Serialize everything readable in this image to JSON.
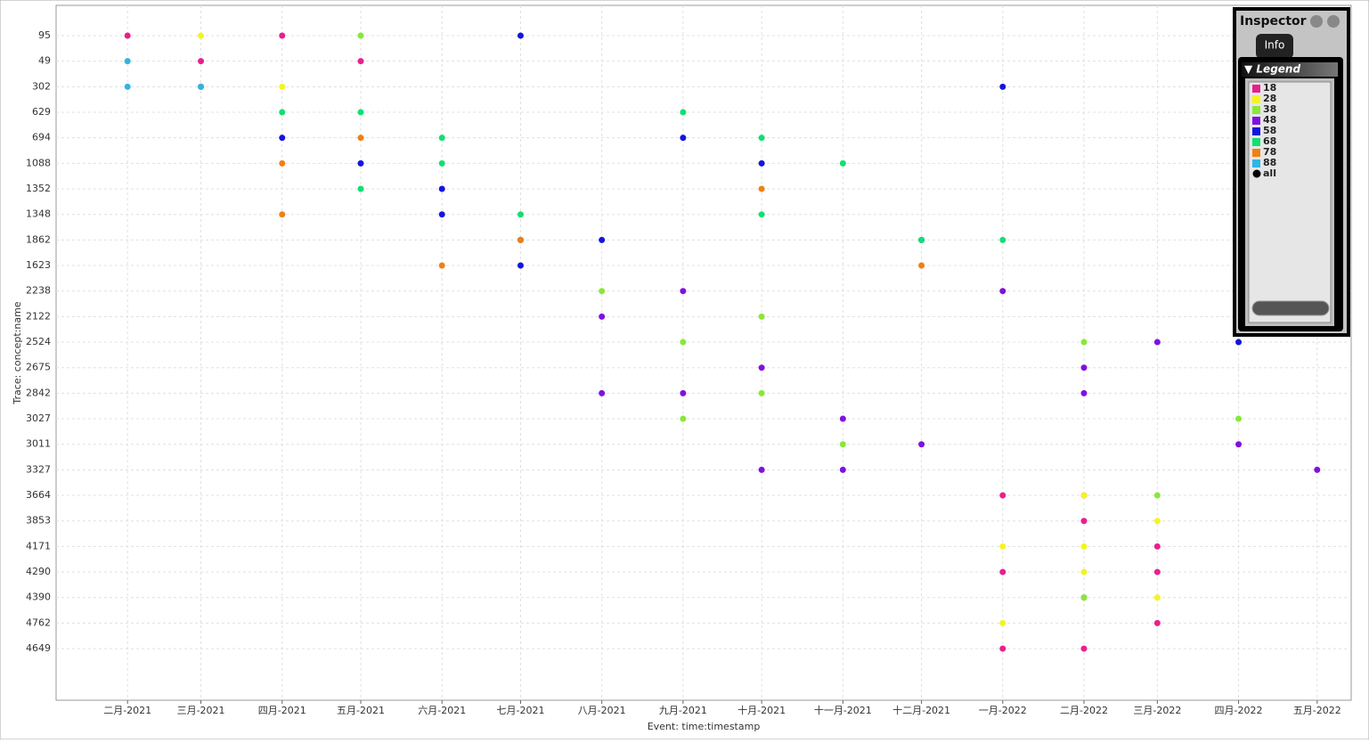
{
  "chart_data": {
    "type": "scatter",
    "y_label": "Trace: concept:name",
    "x_label": "Event: time:timestamp",
    "categories": [
      "95",
      "49",
      "302",
      "629",
      "694",
      "1088",
      "1352",
      "1348",
      "1862",
      "1623",
      "2238",
      "2122",
      "2524",
      "2675",
      "2842",
      "3027",
      "3011",
      "3327",
      "3664",
      "3853",
      "4171",
      "4290",
      "4390",
      "4762",
      "4649"
    ],
    "xlim": [
      "2021-01",
      "2022-06"
    ],
    "xticks": [
      {
        "value": "2021-02",
        "label": "二月-2021"
      },
      {
        "value": "2021-03",
        "label": "三月-2021"
      },
      {
        "value": "2021-04",
        "label": "四月-2021"
      },
      {
        "value": "2021-05",
        "label": "五月-2021"
      },
      {
        "value": "2021-06",
        "label": "六月-2021"
      },
      {
        "value": "2021-07",
        "label": "七月-2021"
      },
      {
        "value": "2021-08",
        "label": "八月-2021"
      },
      {
        "value": "2021-09",
        "label": "九月-2021"
      },
      {
        "value": "2021-10",
        "label": "十月-2021"
      },
      {
        "value": "2021-11",
        "label": "十一月-2021"
      },
      {
        "value": "2021-12",
        "label": "十二月-2021"
      },
      {
        "value": "2022-01",
        "label": "一月-2022"
      },
      {
        "value": "2022-02",
        "label": "二月-2022"
      },
      {
        "value": "2022-03",
        "label": "三月-2022"
      },
      {
        "value": "2022-04",
        "label": "四月-2022"
      },
      {
        "value": "2022-05",
        "label": "五月-2022"
      }
    ],
    "grid": true,
    "series": [
      {
        "name": "18",
        "color": "#e8208c",
        "x": [
          "2021-02",
          "2021-03",
          "2021-04",
          "2021-05",
          "2021-03",
          "2022-01",
          "2022-02",
          "2022-03",
          "2022-01",
          "2022-02",
          "2022-03",
          "2022-01",
          "2022-02",
          "2022-03",
          "2022-02"
        ],
        "values": [
          "95",
          "49",
          "95",
          "49",
          "302",
          "3664",
          "3853",
          "4171",
          "4290",
          "4390",
          "4762",
          "4649",
          "3664",
          "4290",
          "4649"
        ]
      },
      {
        "name": "28",
        "color": "#f4f420",
        "x": [
          "2021-02",
          "2021-04",
          "2021-03",
          "2022-02",
          "2022-03",
          "2022-01",
          "2022-02",
          "2022-03",
          "2022-01",
          "2022-02"
        ],
        "values": [
          "49",
          "302",
          "95",
          "3664",
          "3853",
          "4171",
          "4290",
          "4390",
          "4762",
          "4171"
        ]
      },
      {
        "name": "38",
        "color": "#88e838",
        "x": [
          "2021-03",
          "2021-05",
          "2021-08",
          "2021-09",
          "2021-10",
          "2021-09",
          "2021-11",
          "2021-10",
          "2022-02",
          "2022-03",
          "2022-04",
          "2022-02"
        ],
        "values": [
          "302",
          "95",
          "2238",
          "2524",
          "2842",
          "3027",
          "3011",
          "2122",
          "2524",
          "3664",
          "3027",
          "4390"
        ]
      },
      {
        "name": "48",
        "color": "#8010e0",
        "x": [
          "2021-08",
          "2021-09",
          "2021-10",
          "2021-08",
          "2021-09",
          "2021-10",
          "2021-11",
          "2021-12",
          "2021-11",
          "2022-01",
          "2022-02",
          "2022-03",
          "2022-04",
          "2022-05",
          "2022-02"
        ],
        "values": [
          "2122",
          "2238",
          "2675",
          "2842",
          "2842",
          "3327",
          "3027",
          "3011",
          "3327",
          "2238",
          "2675",
          "2524",
          "3011",
          "3327",
          "2842"
        ]
      },
      {
        "name": "58",
        "color": "#1414e0",
        "x": [
          "2021-04",
          "2021-05",
          "2021-06",
          "2021-07",
          "2021-06",
          "2021-07",
          "2021-08",
          "2021-09",
          "2021-10",
          "2021-12",
          "2021-07",
          "2022-04",
          "2022-01"
        ],
        "values": [
          "694",
          "1088",
          "1352",
          "1862",
          "1348",
          "1623",
          "1862",
          "694",
          "1088",
          "1862",
          "95",
          "2524",
          "302"
        ]
      },
      {
        "name": "68",
        "color": "#10e070",
        "x": [
          "2021-04",
          "2021-05",
          "2021-06",
          "2021-05",
          "2021-06",
          "2021-07",
          "2021-09",
          "2021-10",
          "2021-11",
          "2021-10",
          "2021-12",
          "2022-01"
        ],
        "values": [
          "629",
          "629",
          "694",
          "1352",
          "1088",
          "1348",
          "629",
          "694",
          "1088",
          "1348",
          "1862",
          "1862"
        ]
      },
      {
        "name": "78",
        "color": "#f08010",
        "x": [
          "2021-04",
          "2021-05",
          "2021-04",
          "2021-06",
          "2021-07",
          "2021-12",
          "2021-10"
        ],
        "values": [
          "1088",
          "694",
          "1348",
          "1623",
          "1862",
          "1623",
          "1352"
        ]
      },
      {
        "name": "88",
        "color": "#30b4e4",
        "x": [
          "2021-02",
          "2021-03",
          "2021-02"
        ],
        "values": [
          "302",
          "302",
          "49"
        ]
      }
    ],
    "legend_all": "all"
  },
  "inspector": {
    "title": "Inspector",
    "tab": "Info",
    "panel": "▼ Legend"
  }
}
